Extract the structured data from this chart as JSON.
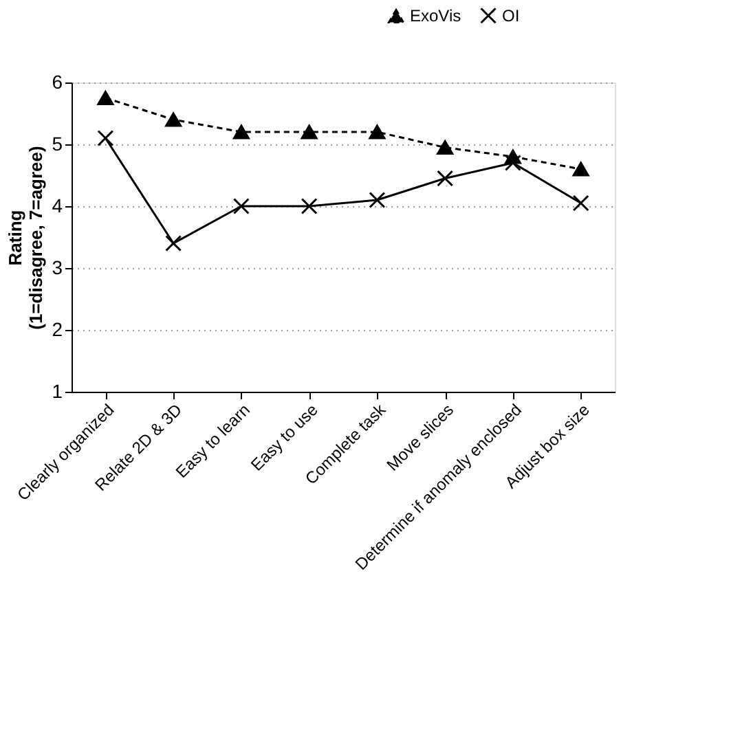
{
  "chart_data": {
    "type": "line",
    "ylabel": "Rating\n(1=disagree, 7=agree)",
    "categories": [
      "Clearly organized",
      "Relate 2D & 3D",
      "Easy to learn",
      "Easy to use",
      "Complete task",
      "Move slices",
      "Determine if anomaly enclosed",
      "Adjust box size"
    ],
    "series": [
      {
        "name": "ExoVis",
        "color": "#000000",
        "marker": "triangle",
        "line_style": "dashed",
        "values": [
          5.75,
          5.4,
          5.2,
          5.2,
          5.2,
          4.95,
          4.8,
          4.6
        ]
      },
      {
        "name": "OI",
        "color": "#000000",
        "marker": "cross",
        "line_style": "solid",
        "values": [
          5.1,
          3.4,
          4.0,
          4.0,
          4.1,
          4.45,
          4.7,
          4.05
        ]
      }
    ],
    "ylim": [
      1,
      6
    ],
    "yticks": [
      1,
      2,
      3,
      4,
      5,
      6
    ],
    "grid": "y",
    "legend": "top right"
  }
}
